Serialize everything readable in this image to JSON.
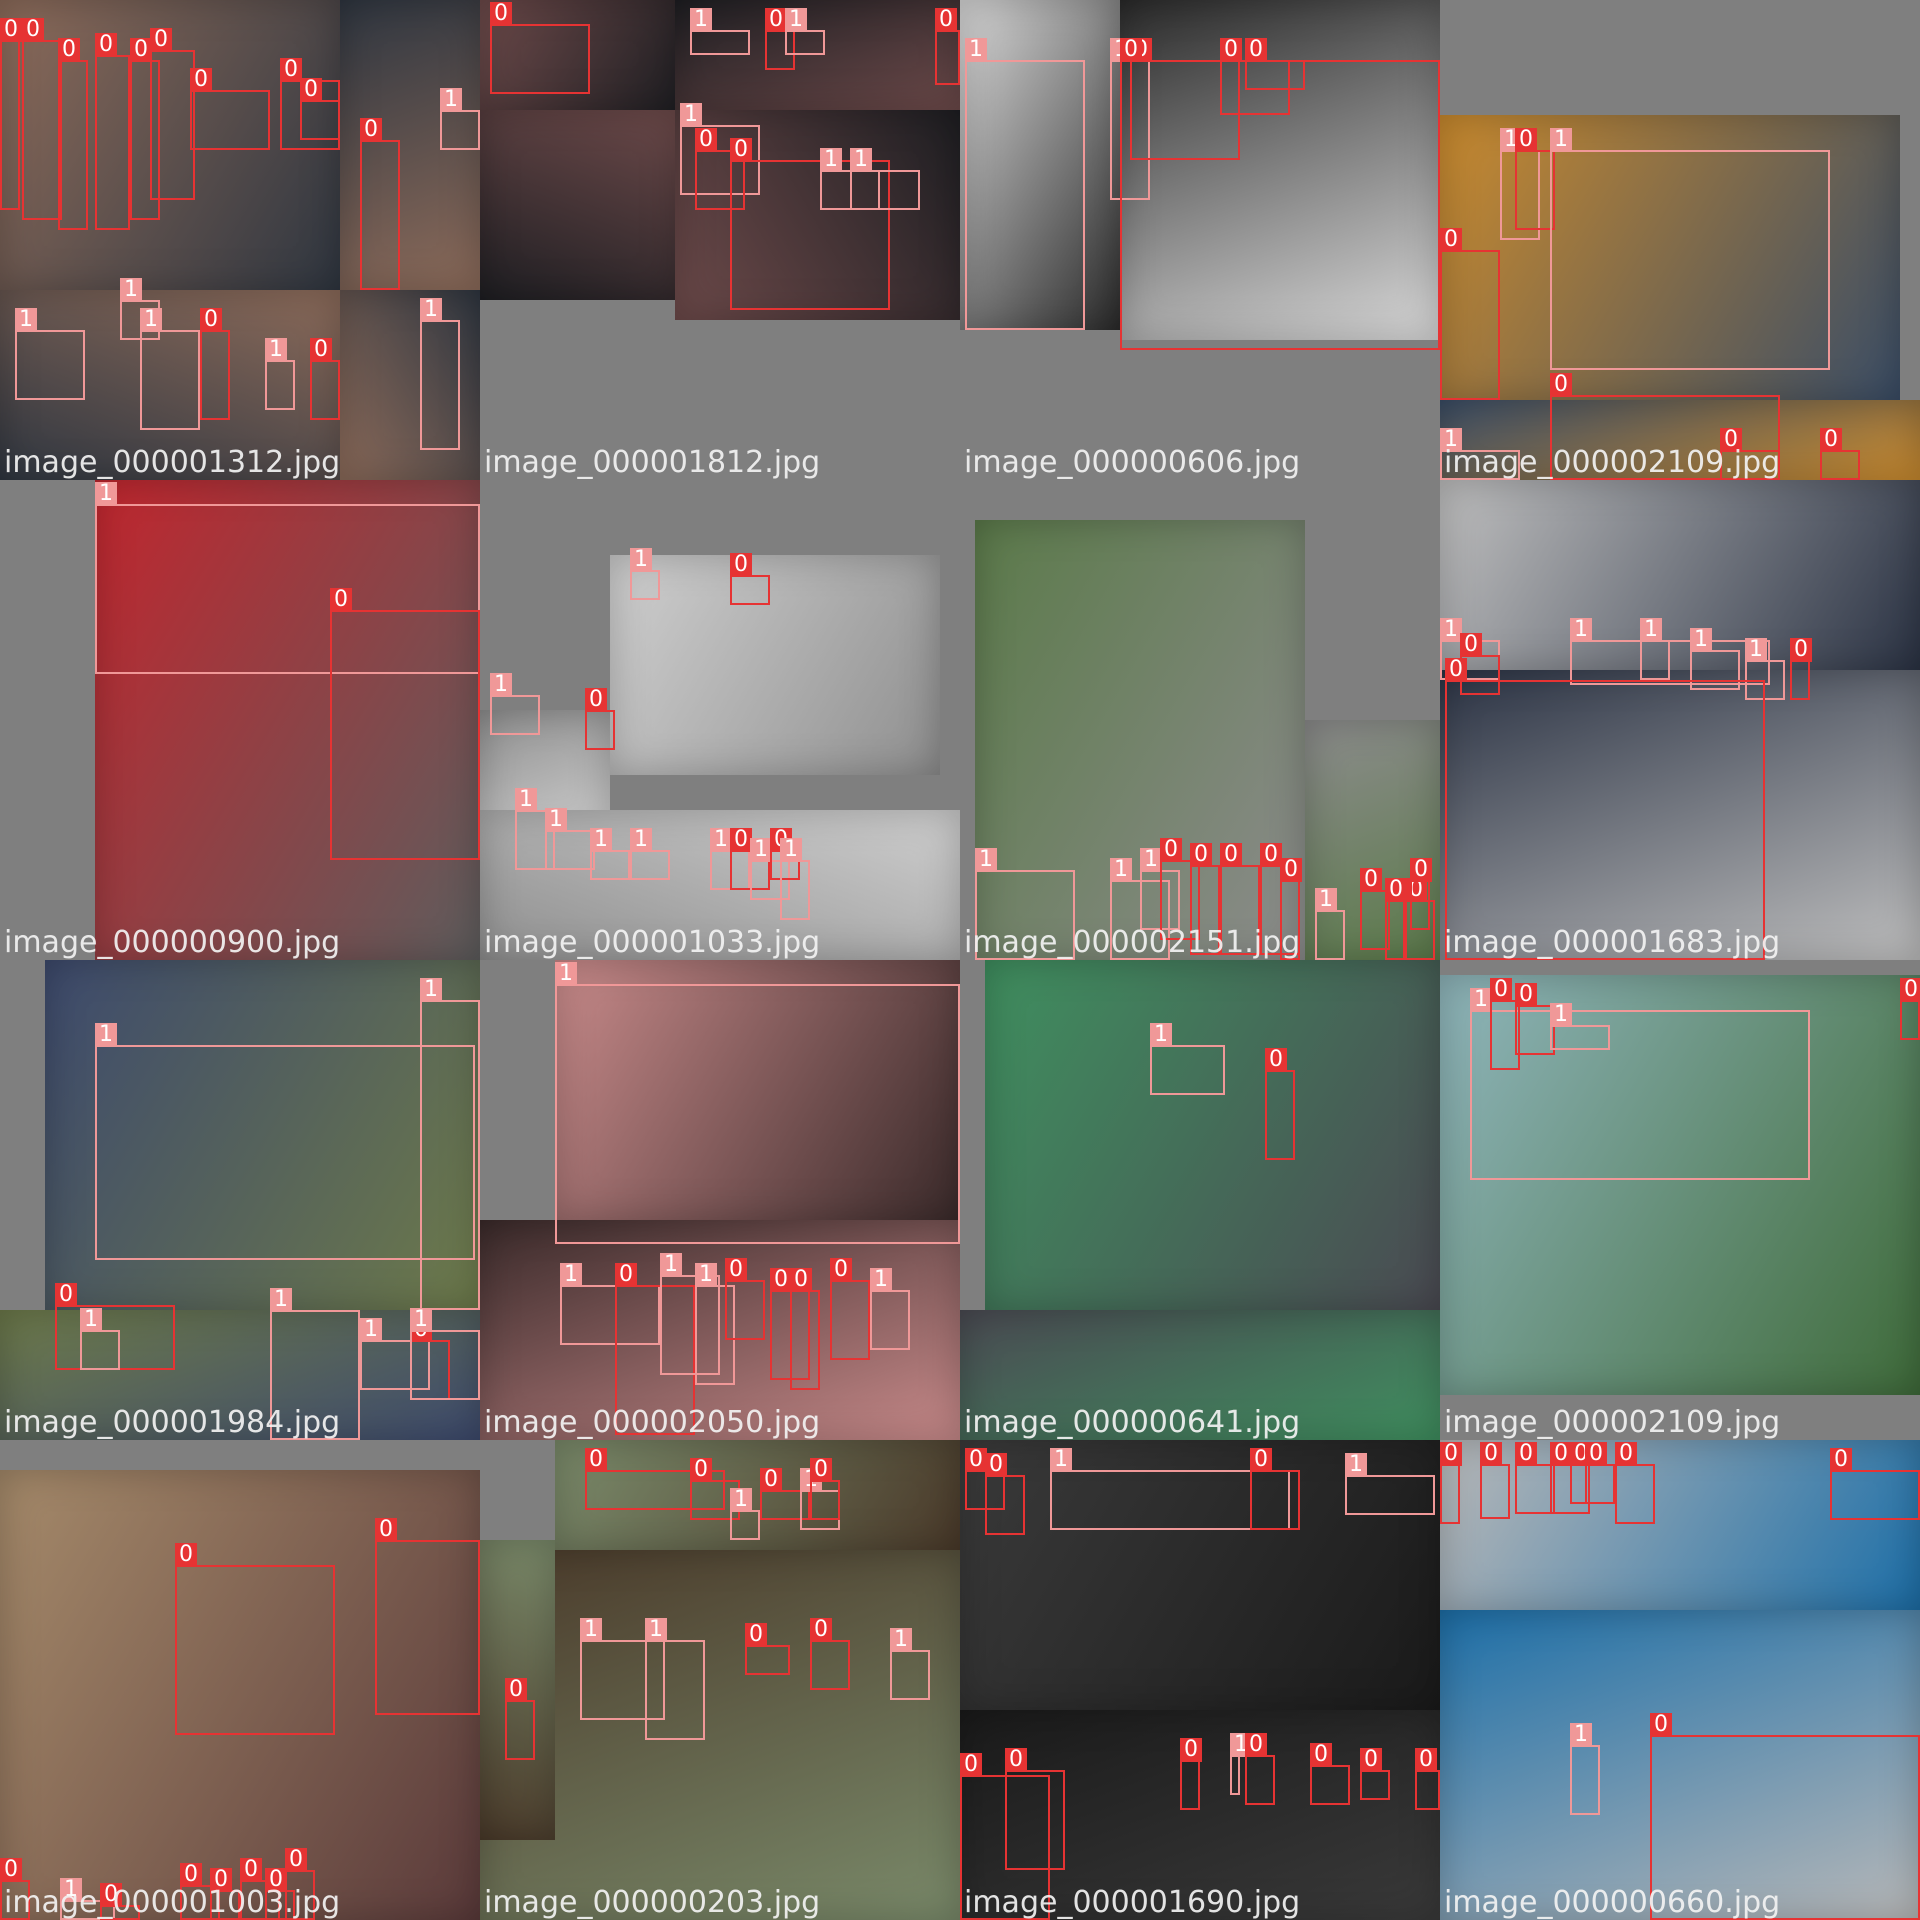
{
  "colors": {
    "class_0": "#e63333",
    "class_1": "#f09898",
    "label_text": "#ffffff",
    "padding": "#7f7f7f"
  },
  "tiles": [
    {
      "filename": "image_000001312.jpg",
      "photo_colors": [
        "#8c6b5a",
        "#2f3640"
      ],
      "boxes": [
        {
          "label": "0",
          "cls": 0
        },
        {
          "label": "0",
          "cls": 0
        },
        {
          "label": "0",
          "cls": 0
        },
        {
          "label": "0",
          "cls": 0
        },
        {
          "label": "0",
          "cls": 0
        },
        {
          "label": "0",
          "cls": 0
        },
        {
          "label": "0",
          "cls": 0
        },
        {
          "label": "0",
          "cls": 0
        },
        {
          "label": "0",
          "cls": 0
        },
        {
          "label": "1",
          "cls": 1
        },
        {
          "label": "1",
          "cls": 1
        },
        {
          "label": "0",
          "cls": 0
        },
        {
          "label": "1",
          "cls": 1
        },
        {
          "label": "0",
          "cls": 0
        },
        {
          "label": "1",
          "cls": 1
        },
        {
          "label": "0",
          "cls": 0
        },
        {
          "label": "1",
          "cls": 1
        },
        {
          "label": "1",
          "cls": 1
        }
      ]
    },
    {
      "filename": "image_000001812.jpg",
      "photo_colors": [
        "#6d4a4a",
        "#1e1e22"
      ],
      "boxes": [
        {
          "label": "0",
          "cls": 0
        },
        {
          "label": "1",
          "cls": 1
        },
        {
          "label": "0",
          "cls": 0
        },
        {
          "label": "1",
          "cls": 1
        },
        {
          "label": "0",
          "cls": 0
        },
        {
          "label": "1",
          "cls": 1
        },
        {
          "label": "0",
          "cls": 0
        },
        {
          "label": "0",
          "cls": 0
        },
        {
          "label": "1",
          "cls": 1
        },
        {
          "label": "1",
          "cls": 1
        }
      ]
    },
    {
      "filename": "image_000000606.jpg",
      "photo_colors": [
        "#d9d9d9",
        "#2a2a2a"
      ],
      "boxes": [
        {
          "label": "1",
          "cls": 1
        },
        {
          "label": "1",
          "cls": 1
        },
        {
          "label": "0",
          "cls": 0
        },
        {
          "label": "0",
          "cls": 0
        },
        {
          "label": "0",
          "cls": 0
        },
        {
          "label": "0",
          "cls": 0
        }
      ]
    },
    {
      "filename": "image_000002109.jpg",
      "photo_colors": [
        "#c98a2e",
        "#3a4d66"
      ],
      "boxes": [
        {
          "label": "1",
          "cls": 1
        },
        {
          "label": "0",
          "cls": 0
        },
        {
          "label": "1",
          "cls": 1
        },
        {
          "label": "0",
          "cls": 0
        },
        {
          "label": "1",
          "cls": 1
        },
        {
          "label": "0",
          "cls": 0
        },
        {
          "label": "0",
          "cls": 0
        },
        {
          "label": "0",
          "cls": 0
        }
      ]
    },
    {
      "filename": "image_000000900.jpg",
      "photo_colors": [
        "#c0262e",
        "#5d5d5d"
      ],
      "boxes": [
        {
          "label": "1",
          "cls": 1
        },
        {
          "label": "0",
          "cls": 0
        }
      ]
    },
    {
      "filename": "image_000001033.jpg",
      "photo_colors": [
        "#cfcfcf",
        "#8f8f8f"
      ],
      "boxes": [
        {
          "label": "1",
          "cls": 1
        },
        {
          "label": "0",
          "cls": 0
        },
        {
          "label": "1",
          "cls": 1
        },
        {
          "label": "0",
          "cls": 0
        },
        {
          "label": "1",
          "cls": 1
        },
        {
          "label": "1",
          "cls": 1
        },
        {
          "label": "1",
          "cls": 1
        },
        {
          "label": "1",
          "cls": 1
        },
        {
          "label": "1",
          "cls": 1
        },
        {
          "label": "0",
          "cls": 0
        },
        {
          "label": "1",
          "cls": 1
        },
        {
          "label": "0",
          "cls": 0
        },
        {
          "label": "1",
          "cls": 1
        }
      ]
    },
    {
      "filename": "image_000002151.jpg",
      "photo_colors": [
        "#5b7a4a",
        "#8c8c8c"
      ],
      "boxes": [
        {
          "label": "1",
          "cls": 1
        },
        {
          "label": "1",
          "cls": 1
        },
        {
          "label": "1",
          "cls": 1
        },
        {
          "label": "0",
          "cls": 0
        },
        {
          "label": "0",
          "cls": 0
        },
        {
          "label": "0",
          "cls": 0
        },
        {
          "label": "0",
          "cls": 0
        },
        {
          "label": "0",
          "cls": 0
        },
        {
          "label": "1",
          "cls": 1
        },
        {
          "label": "0",
          "cls": 0
        },
        {
          "label": "0",
          "cls": 0
        },
        {
          "label": "0",
          "cls": 0
        },
        {
          "label": "0",
          "cls": 0
        }
      ]
    },
    {
      "filename": "image_000001683.jpg",
      "photo_colors": [
        "#bfbfbf",
        "#2b3344"
      ],
      "boxes": [
        {
          "label": "1",
          "cls": 1
        },
        {
          "label": "0",
          "cls": 0
        },
        {
          "label": "1",
          "cls": 1
        },
        {
          "label": "1",
          "cls": 1
        },
        {
          "label": "1",
          "cls": 1
        },
        {
          "label": "1",
          "cls": 1
        },
        {
          "label": "0",
          "cls": 0
        },
        {
          "label": "0",
          "cls": 0
        }
      ]
    },
    {
      "filename": "image_000001984.jpg",
      "photo_colors": [
        "#3d4a6d",
        "#6d7a4a"
      ],
      "boxes": [
        {
          "label": "1",
          "cls": 1
        },
        {
          "label": "1",
          "cls": 1
        },
        {
          "label": "0",
          "cls": 0
        },
        {
          "label": "1",
          "cls": 1
        },
        {
          "label": "1",
          "cls": 1
        },
        {
          "label": "1",
          "cls": 1
        },
        {
          "label": "0",
          "cls": 0
        },
        {
          "label": "1",
          "cls": 1
        },
        {
          "label": "1",
          "cls": 1
        }
      ]
    },
    {
      "filename": "image_000002050.jpg",
      "photo_colors": [
        "#c88a8a",
        "#3a2a2a"
      ],
      "boxes": [
        {
          "label": "1",
          "cls": 1
        },
        {
          "label": "1",
          "cls": 1
        },
        {
          "label": "0",
          "cls": 0
        },
        {
          "label": "1",
          "cls": 1
        },
        {
          "label": "1",
          "cls": 1
        },
        {
          "label": "0",
          "cls": 0
        },
        {
          "label": "0",
          "cls": 0
        },
        {
          "label": "0",
          "cls": 0
        },
        {
          "label": "0",
          "cls": 0
        },
        {
          "label": "1",
          "cls": 1
        }
      ]
    },
    {
      "filename": "image_000000641.jpg",
      "photo_colors": [
        "#3f8f5f",
        "#4a4a52"
      ],
      "boxes": [
        {
          "label": "1",
          "cls": 1
        },
        {
          "label": "0",
          "cls": 0
        }
      ]
    },
    {
      "filename": "image_000002109.jpg",
      "photo_colors": [
        "#8fb5bb",
        "#3f6b3a"
      ],
      "boxes": [
        {
          "label": "1",
          "cls": 1
        },
        {
          "label": "0",
          "cls": 0
        },
        {
          "label": "0",
          "cls": 0
        },
        {
          "label": "1",
          "cls": 1
        },
        {
          "label": "0",
          "cls": 0
        }
      ]
    },
    {
      "filename": "image_000001003.jpg",
      "photo_colors": [
        "#a58a6a",
        "#5a3a3a"
      ],
      "boxes": [
        {
          "label": "0",
          "cls": 0
        },
        {
          "label": "0",
          "cls": 0
        },
        {
          "label": "0",
          "cls": 0
        },
        {
          "label": "1",
          "cls": 1
        },
        {
          "label": "0",
          "cls": 0
        },
        {
          "label": "0",
          "cls": 0
        },
        {
          "label": "0",
          "cls": 0
        },
        {
          "label": "0",
          "cls": 0
        },
        {
          "label": "0",
          "cls": 0
        },
        {
          "label": "0",
          "cls": 0
        }
      ]
    },
    {
      "filename": "image_000000203.jpg",
      "photo_colors": [
        "#7a8a6a",
        "#4a3a2a"
      ],
      "boxes": [
        {
          "label": "0",
          "cls": 0
        },
        {
          "label": "0",
          "cls": 0
        },
        {
          "label": "1",
          "cls": 1
        },
        {
          "label": "0",
          "cls": 0
        },
        {
          "label": "1",
          "cls": 1
        },
        {
          "label": "0",
          "cls": 0
        },
        {
          "label": "1",
          "cls": 1
        },
        {
          "label": "1",
          "cls": 1
        },
        {
          "label": "0",
          "cls": 0
        },
        {
          "label": "0",
          "cls": 0
        },
        {
          "label": "1",
          "cls": 1
        },
        {
          "label": "0",
          "cls": 0
        }
      ]
    },
    {
      "filename": "image_000001690.jpg",
      "photo_colors": [
        "#3a3a3a",
        "#1a1a1a"
      ],
      "boxes": [
        {
          "label": "0",
          "cls": 0
        },
        {
          "label": "0",
          "cls": 0
        },
        {
          "label": "1",
          "cls": 1
        },
        {
          "label": "0",
          "cls": 0
        },
        {
          "label": "1",
          "cls": 1
        },
        {
          "label": "0",
          "cls": 0
        },
        {
          "label": "1",
          "cls": 1
        },
        {
          "label": "0",
          "cls": 0
        },
        {
          "label": "0",
          "cls": 0
        },
        {
          "label": "0",
          "cls": 0
        },
        {
          "label": "0",
          "cls": 0
        },
        {
          "label": "0",
          "cls": 0
        },
        {
          "label": "0",
          "cls": 0
        }
      ]
    },
    {
      "filename": "image_000000660.jpg",
      "photo_colors": [
        "#b8b8b8",
        "#1d6fa8"
      ],
      "boxes": [
        {
          "label": "0",
          "cls": 0
        },
        {
          "label": "0",
          "cls": 0
        },
        {
          "label": "0",
          "cls": 0
        },
        {
          "label": "0",
          "cls": 0
        },
        {
          "label": "0",
          "cls": 0
        },
        {
          "label": "0",
          "cls": 0
        },
        {
          "label": "0",
          "cls": 0
        },
        {
          "label": "0",
          "cls": 0
        },
        {
          "label": "1",
          "cls": 1
        },
        {
          "label": "0",
          "cls": 0
        }
      ]
    }
  ]
}
